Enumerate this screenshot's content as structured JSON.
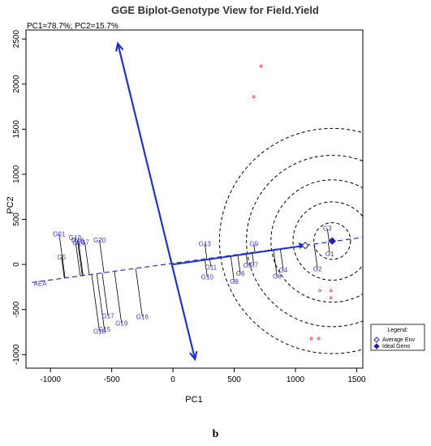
{
  "chart_data": {
    "type": "scatter",
    "title": "GGE Biplot-Genotype View for Field.Yield",
    "subtitle": "PC1=78.7%; PC2=15.7%",
    "xlabel": "PC1",
    "ylabel": "PC2",
    "xlim": [
      -1200,
      1550
    ],
    "ylim": [
      -1150,
      2600
    ],
    "xticks": [
      -1000,
      -500,
      0,
      500,
      1000,
      1500
    ],
    "yticks": [
      -1000,
      -500,
      0,
      500,
      1000,
      1500,
      2000,
      2500
    ],
    "grid": false,
    "genotypes": [
      {
        "label": "G01",
        "x": -930,
        "y": 340
      },
      {
        "label": "G5",
        "x": -910,
        "y": 80
      },
      {
        "label": "G12",
        "x": -800,
        "y": 300
      },
      {
        "label": "G18",
        "x": -780,
        "y": 270
      },
      {
        "label": "G14",
        "x": -770,
        "y": 240
      },
      {
        "label": "G7",
        "x": -720,
        "y": 250
      },
      {
        "label": "G20",
        "x": -600,
        "y": 270
      },
      {
        "label": "G17",
        "x": -530,
        "y": -570
      },
      {
        "label": "G13",
        "x": 260,
        "y": 230
      },
      {
        "label": "G11",
        "x": 310,
        "y": -30
      },
      {
        "label": "G10",
        "x": 280,
        "y": -140
      },
      {
        "label": "G8",
        "x": 500,
        "y": -190
      },
      {
        "label": "G6",
        "x": 550,
        "y": -100
      },
      {
        "label": "G5",
        "x": 610,
        "y": -10
      },
      {
        "label": "G7",
        "x": 660,
        "y": -5
      },
      {
        "label": "G9",
        "x": 660,
        "y": 230
      },
      {
        "label": "G4",
        "x": 900,
        "y": -60
      },
      {
        "label": "G8",
        "x": 850,
        "y": -130
      },
      {
        "label": "G2",
        "x": 1180,
        "y": -50
      },
      {
        "label": "G3",
        "x": 1260,
        "y": 400
      },
      {
        "label": "G1",
        "x": 1280,
        "y": 120
      },
      {
        "label": "G19",
        "x": -420,
        "y": -650
      },
      {
        "label": "G16",
        "x": -250,
        "y": -580
      },
      {
        "label": "G15",
        "x": -560,
        "y": -720
      },
      {
        "label": "G18",
        "x": -600,
        "y": -740
      }
    ],
    "environment_points": [
      {
        "x": 720,
        "y": 2200
      },
      {
        "x": 660,
        "y": 1860
      },
      {
        "x": 1280,
        "y": 270
      },
      {
        "x": 1200,
        "y": -290
      },
      {
        "x": 1290,
        "y": -290
      },
      {
        "x": 1290,
        "y": -370
      },
      {
        "x": 1130,
        "y": -820
      },
      {
        "x": 1190,
        "y": -820
      }
    ],
    "axis_line": {
      "label": "AEA",
      "from": [
        -1150,
        -200
      ],
      "to": [
        1550,
        300
      ]
    },
    "average_environment": {
      "x": 1080,
      "y": 210
    },
    "ideal_genotype": {
      "x": 1300,
      "y": 260
    },
    "circle_radii": [
      150,
      320,
      500,
      700,
      920
    ],
    "long_arrow": {
      "from": [
        -450,
        2450
      ],
      "to": [
        180,
        -1050
      ]
    },
    "legend": {
      "title": "Legend:",
      "items": [
        "Average Env",
        "Ideal Geno"
      ],
      "placement": "right"
    }
  },
  "caption": "b"
}
